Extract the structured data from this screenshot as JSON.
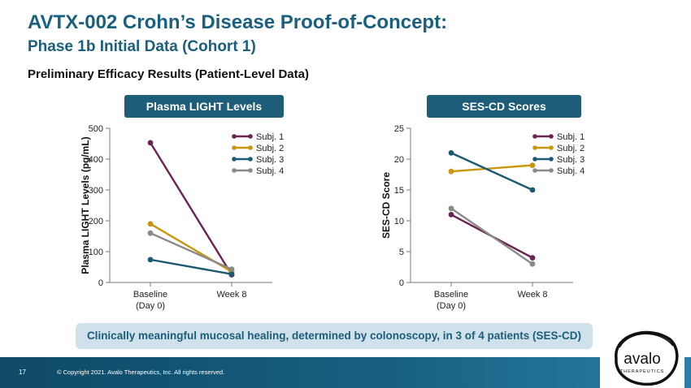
{
  "header": {
    "title": "AVTX-002 Crohn’s Disease Proof-of-Concept:",
    "subtitle": "Phase 1b Initial Data (Cohort 1)",
    "section": "Preliminary Efficacy Results (Patient-Level Data)"
  },
  "callout": "Clinically meaningful mucosal healing, determined by colonoscopy, in 3 of 4 patients (SES-CD)",
  "footer": {
    "page_number": "17",
    "copyright": "© Copyright 2021. Avalo Therapeutics, Inc. All rights reserved."
  },
  "logo": {
    "name": "avalo",
    "tagline": "THERAPEUTICS"
  },
  "colors": {
    "subj1": "#6b2452",
    "subj2": "#c9960c",
    "subj3": "#1b5a70",
    "subj4": "#8a8a8a"
  },
  "chart_data": [
    {
      "type": "line",
      "header": "Plasma LIGHT Levels",
      "ylabel": "Plasma LIGHT Levels (pg/mL)",
      "categories": [
        "Baseline",
        "Week 8"
      ],
      "category_sublabels": [
        "(Day 0)",
        ""
      ],
      "ylim": [
        0,
        500
      ],
      "yticks": [
        0,
        100,
        200,
        300,
        400,
        500
      ],
      "legend_position": "top-right",
      "series": [
        {
          "name": "Subj. 1",
          "values": [
            453,
            25
          ]
        },
        {
          "name": "Subj. 2",
          "values": [
            190,
            35
          ]
        },
        {
          "name": "Subj. 3",
          "values": [
            74,
            27
          ]
        },
        {
          "name": "Subj. 4",
          "values": [
            160,
            43
          ]
        }
      ]
    },
    {
      "type": "line",
      "header": "SES-CD Scores",
      "ylabel": "SES-CD Score",
      "categories": [
        "Baseline",
        "Week 8"
      ],
      "category_sublabels": [
        "(Day 0)",
        ""
      ],
      "ylim": [
        0,
        25
      ],
      "yticks": [
        0,
        5,
        10,
        15,
        20,
        25
      ],
      "legend_position": "top-right",
      "series": [
        {
          "name": "Subj. 1",
          "values": [
            11,
            4
          ]
        },
        {
          "name": "Subj. 2",
          "values": [
            18,
            19
          ]
        },
        {
          "name": "Subj. 3",
          "values": [
            21,
            15
          ]
        },
        {
          "name": "Subj. 4",
          "values": [
            12,
            3
          ]
        }
      ]
    }
  ]
}
